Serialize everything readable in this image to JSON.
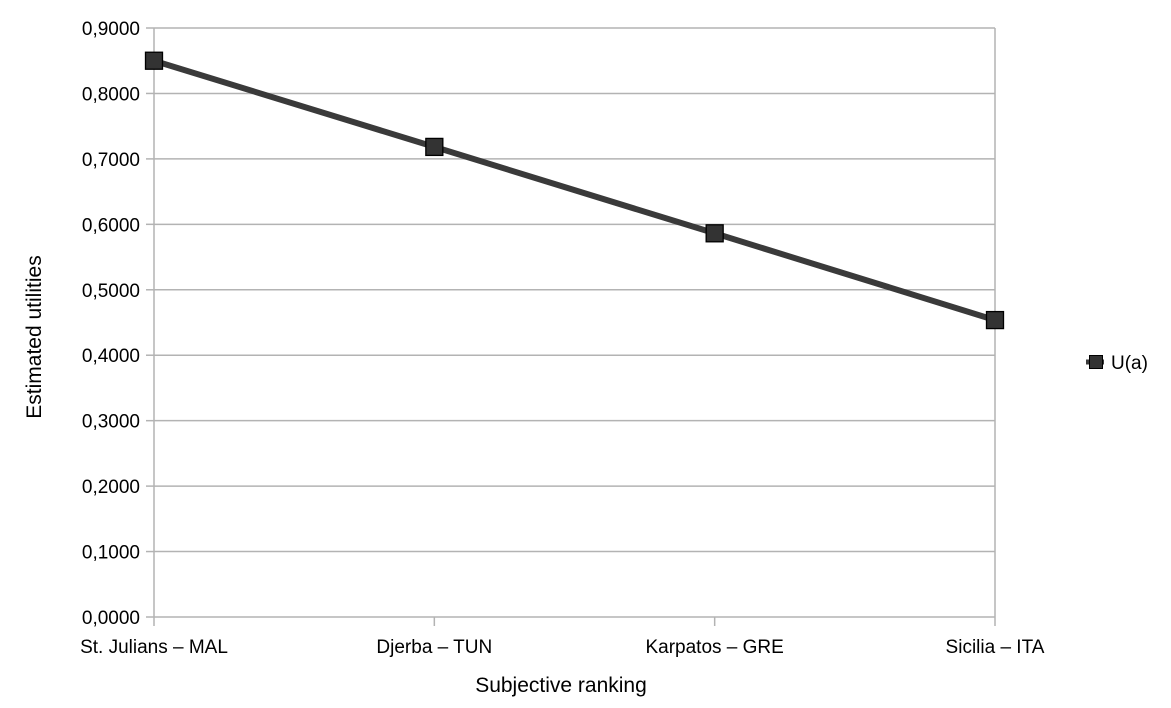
{
  "chart_data": {
    "type": "line",
    "categories": [
      "St. Julians – MAL",
      "Djerba – TUN",
      "Karpatos – GRE",
      "Sicilia – ITA"
    ],
    "series": [
      {
        "name": "U(a)",
        "values": [
          0.85,
          0.7183,
          0.5863,
          0.4537
        ]
      }
    ],
    "xlabel": "Subjective ranking",
    "ylabel": "Estimated utilities",
    "ylim": [
      0,
      0.9
    ],
    "yticks": [
      0,
      0.1,
      0.2,
      0.3,
      0.4,
      0.5,
      0.6,
      0.7,
      0.8,
      0.9
    ],
    "ytick_labels": [
      "0,0000",
      "0,1000",
      "0,2000",
      "0,3000",
      "0,4000",
      "0,5000",
      "0,6000",
      "0,7000",
      "0,8000",
      "0,9000"
    ],
    "grid": true,
    "legend_position": "right",
    "colors": {
      "line": "#3a3a3a",
      "marker": "#333333",
      "grid": "#b3b3b3",
      "axis": "#b3b3b3"
    }
  }
}
